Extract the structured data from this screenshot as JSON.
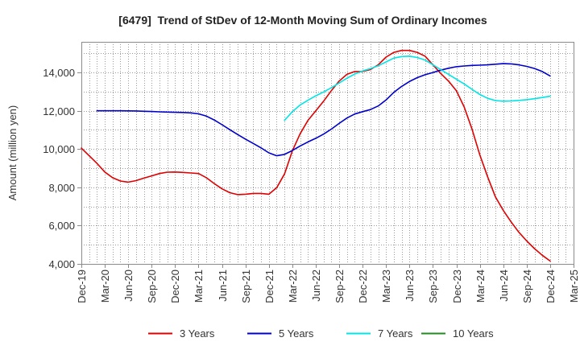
{
  "chart_data": {
    "type": "line",
    "title": "[6479]  Trend of StDev of 12-Month Moving Sum of Ordinary Incomes",
    "ylabel": "Amount (million yen)",
    "x_ticks": [
      "Dec-19",
      "Mar-20",
      "Jun-20",
      "Sep-20",
      "Dec-20",
      "Mar-21",
      "Jun-21",
      "Sep-21",
      "Dec-21",
      "Mar-22",
      "Jun-22",
      "Sep-22",
      "Dec-22",
      "Mar-23",
      "Jun-23",
      "Sep-23",
      "Dec-23",
      "Mar-24",
      "Jun-24",
      "Sep-24",
      "Dec-24",
      "Mar-25"
    ],
    "points_per_tick": 3,
    "y_ticks": [
      {
        "value": 4000,
        "label": "4,000"
      },
      {
        "value": 6000,
        "label": "6,000"
      },
      {
        "value": 8000,
        "label": "8,000"
      },
      {
        "value": 10000,
        "label": "10,000"
      },
      {
        "value": 12000,
        "label": "12,000"
      },
      {
        "value": 14000,
        "label": "14,000"
      }
    ],
    "ylim": [
      4000,
      15600
    ],
    "y_grid_step": 1000,
    "grid": true,
    "legend_position": "bottom",
    "series": [
      {
        "name": "3 Years",
        "color": "#e00000",
        "values": [
          10050,
          9650,
          9250,
          8800,
          8500,
          8330,
          8270,
          8350,
          8480,
          8600,
          8720,
          8790,
          8800,
          8780,
          8750,
          8720,
          8500,
          8200,
          7920,
          7720,
          7620,
          7640,
          7680,
          7680,
          7640,
          7980,
          8700,
          9900,
          10800,
          11500,
          12000,
          12500,
          13050,
          13550,
          13900,
          14050,
          14050,
          14150,
          14400,
          14800,
          15050,
          15150,
          15150,
          15050,
          14850,
          14400,
          13950,
          13550,
          13050,
          12200,
          11050,
          9700,
          8550,
          7500,
          6800,
          6200,
          5650,
          5200,
          4800,
          4450,
          4150
        ]
      },
      {
        "name": "5 Years",
        "color": "#0000cd",
        "values": [
          null,
          null,
          12000,
          12000,
          12000,
          12000,
          11995,
          11990,
          11975,
          11960,
          11945,
          11930,
          11920,
          11910,
          11890,
          11840,
          11720,
          11520,
          11270,
          11010,
          10760,
          10520,
          10290,
          10060,
          9800,
          9650,
          9720,
          9920,
          10160,
          10370,
          10560,
          10780,
          11040,
          11340,
          11620,
          11830,
          11950,
          12060,
          12250,
          12560,
          12960,
          13270,
          13530,
          13730,
          13880,
          14000,
          14120,
          14220,
          14300,
          14340,
          14370,
          14380,
          14400,
          14430,
          14460,
          14450,
          14400,
          14320,
          14210,
          14050,
          13820
        ]
      },
      {
        "name": "7 Years",
        "color": "#00e5e5",
        "values": [
          null,
          null,
          null,
          null,
          null,
          null,
          null,
          null,
          null,
          null,
          null,
          null,
          null,
          null,
          null,
          null,
          null,
          null,
          null,
          null,
          null,
          null,
          null,
          null,
          null,
          null,
          11500,
          11950,
          12300,
          12550,
          12780,
          12980,
          13200,
          13450,
          13700,
          13920,
          14080,
          14200,
          14350,
          14550,
          14750,
          14830,
          14850,
          14780,
          14650,
          14400,
          14150,
          13900,
          13650,
          13400,
          13120,
          12850,
          12650,
          12530,
          12500,
          12510,
          12540,
          12580,
          12630,
          12690,
          12760
        ]
      },
      {
        "name": "10 Years",
        "color": "#228b22",
        "values": []
      }
    ]
  }
}
